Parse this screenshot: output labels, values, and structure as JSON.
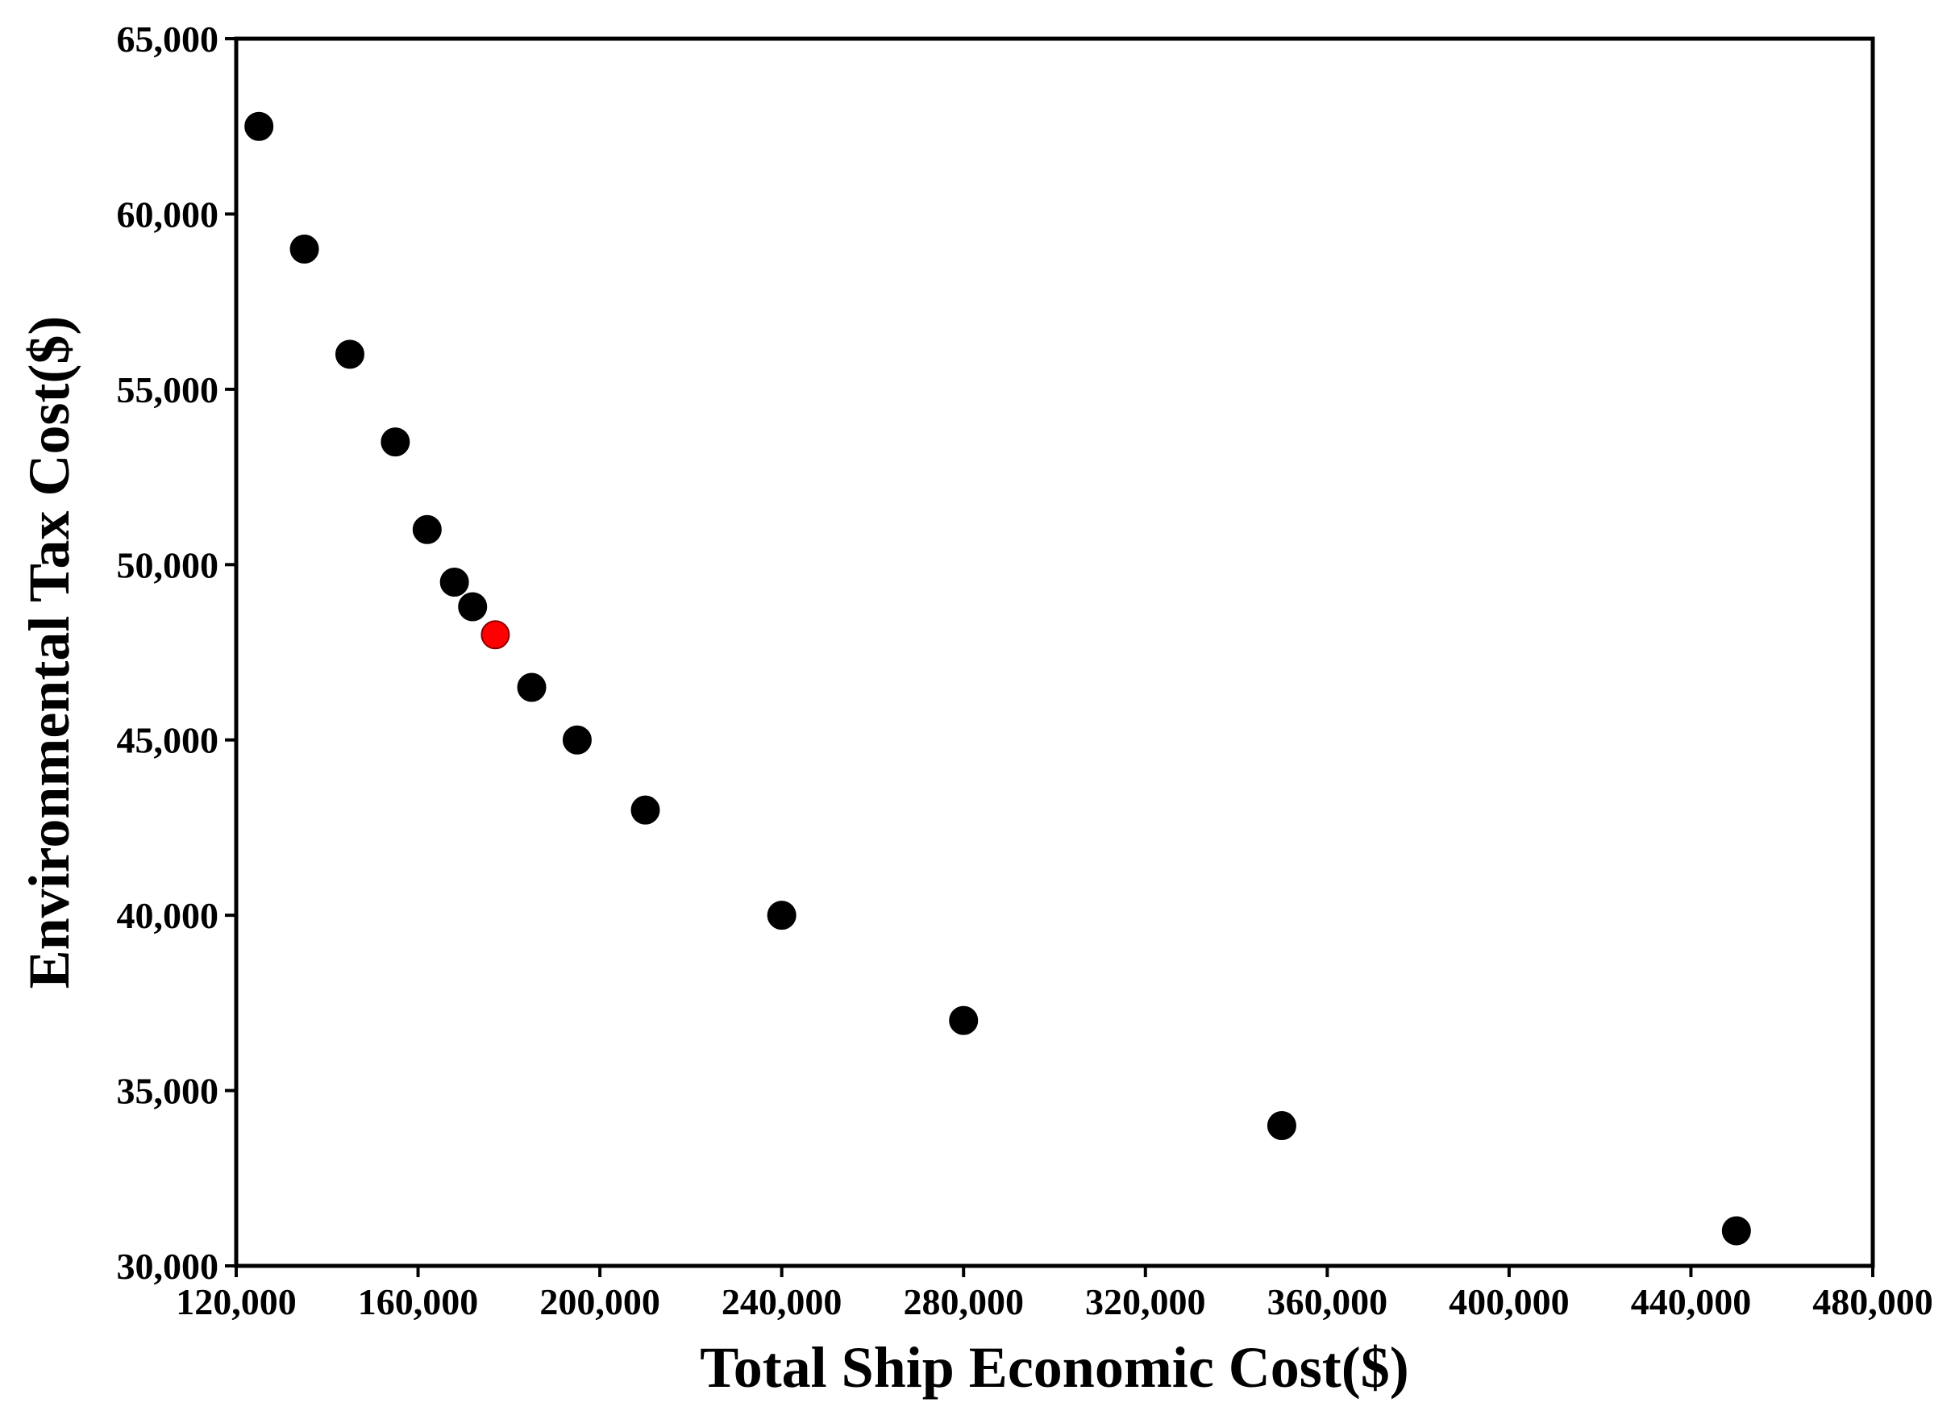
{
  "chart_data": {
    "type": "scatter",
    "title": "",
    "xlabel": "Total Ship Economic Cost($)",
    "ylabel": "Environmental Tax Cost($)",
    "xlim": [
      120000,
      480000
    ],
    "ylim": [
      30000,
      65000
    ],
    "xticks": [
      120000,
      160000,
      200000,
      240000,
      280000,
      320000,
      360000,
      400000,
      440000,
      480000
    ],
    "xtick_labels": [
      "120,000",
      "160,000",
      "200,000",
      "240,000",
      "280,000",
      "320,000",
      "360,000",
      "400,000",
      "440,000",
      "480,000"
    ],
    "yticks": [
      30000,
      35000,
      40000,
      45000,
      50000,
      55000,
      60000,
      65000
    ],
    "ytick_labels": [
      "30,000",
      "35,000",
      "40,000",
      "45,000",
      "50,000",
      "55,000",
      "60,000",
      "65,000"
    ],
    "grid": false,
    "legend": "none",
    "colors": {
      "point": "#000000",
      "highlight": "#ff0000"
    },
    "series": [
      {
        "points": [
          {
            "x": 125000,
            "y": 62500
          },
          {
            "x": 135000,
            "y": 59000
          },
          {
            "x": 145000,
            "y": 56000
          },
          {
            "x": 155000,
            "y": 53500
          },
          {
            "x": 162000,
            "y": 51000
          },
          {
            "x": 168000,
            "y": 49500
          },
          {
            "x": 172000,
            "y": 48800
          },
          {
            "x": 177000,
            "y": 48000,
            "highlight": true
          },
          {
            "x": 185000,
            "y": 46500
          },
          {
            "x": 195000,
            "y": 45000
          },
          {
            "x": 210000,
            "y": 43000
          },
          {
            "x": 240000,
            "y": 40000
          },
          {
            "x": 280000,
            "y": 37000
          },
          {
            "x": 350000,
            "y": 34000
          },
          {
            "x": 450000,
            "y": 31000
          }
        ]
      }
    ]
  }
}
